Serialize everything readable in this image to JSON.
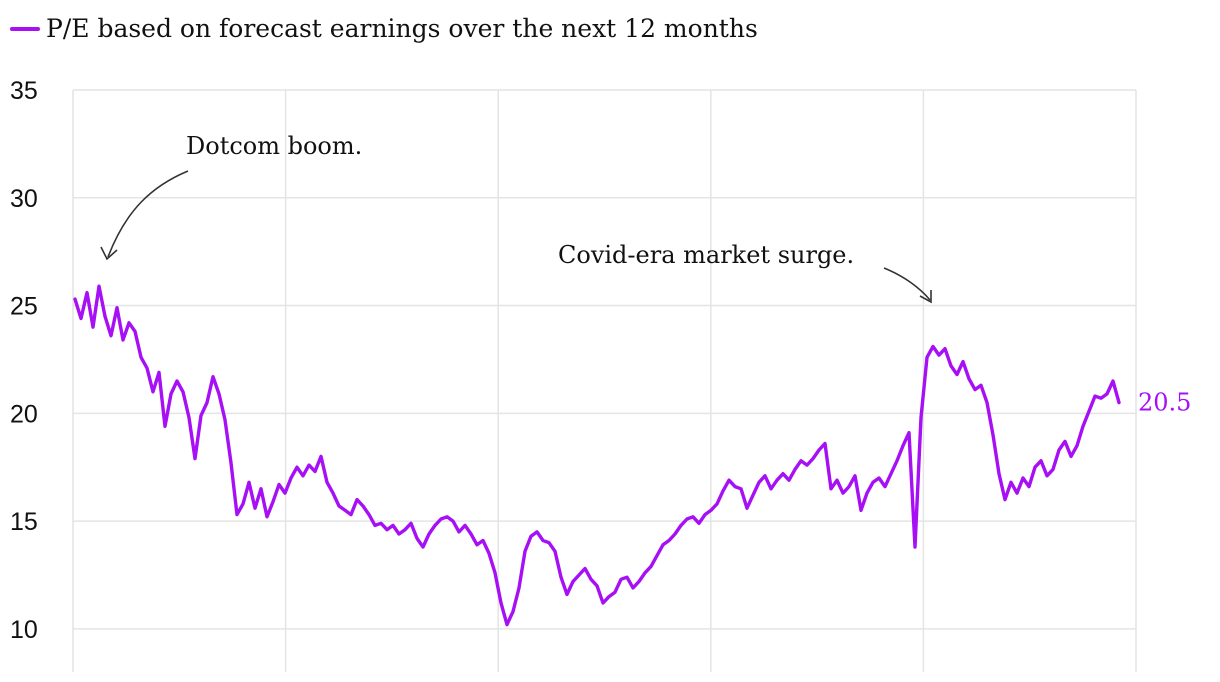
{
  "chart_data": {
    "type": "line",
    "legend": {
      "label": "P/E based on forecast earnings over the next 12 months",
      "placement": "top-left"
    },
    "ylim": [
      8,
      35
    ],
    "y_ticks": [
      10,
      15,
      20,
      25,
      30,
      35
    ],
    "y_tick_labels": [
      "10",
      "15",
      "20",
      "25",
      "30",
      "35"
    ],
    "grid": true,
    "color": "#a70ff5",
    "series": [
      {
        "name": "P/E based on forecast earnings over the next 12 months",
        "values": [
          25.3,
          24.4,
          25.6,
          24.0,
          25.9,
          24.5,
          23.6,
          24.9,
          23.4,
          24.2,
          23.8,
          22.6,
          22.1,
          21.0,
          21.9,
          19.4,
          20.9,
          21.5,
          21.0,
          19.8,
          17.9,
          19.9,
          20.5,
          21.7,
          20.9,
          19.7,
          17.7,
          15.3,
          15.8,
          16.8,
          15.6,
          16.5,
          15.2,
          15.9,
          16.7,
          16.3,
          17.0,
          17.5,
          17.1,
          17.6,
          17.3,
          18.0,
          16.8,
          16.3,
          15.7,
          15.5,
          15.3,
          16.0,
          15.7,
          15.3,
          14.8,
          14.9,
          14.6,
          14.8,
          14.4,
          14.6,
          14.9,
          14.2,
          13.8,
          14.4,
          14.8,
          15.1,
          15.2,
          15.0,
          14.5,
          14.8,
          14.4,
          13.9,
          14.1,
          13.5,
          12.6,
          11.2,
          10.2,
          10.8,
          11.9,
          13.6,
          14.3,
          14.5,
          14.1,
          14.0,
          13.6,
          12.4,
          11.6,
          12.2,
          12.5,
          12.8,
          12.3,
          12.0,
          11.2,
          11.5,
          11.7,
          12.3,
          12.4,
          11.9,
          12.2,
          12.6,
          12.9,
          13.4,
          13.9,
          14.1,
          14.4,
          14.8,
          15.1,
          15.2,
          14.9,
          15.3,
          15.5,
          15.8,
          16.4,
          16.9,
          16.6,
          16.5,
          15.6,
          16.2,
          16.8,
          17.1,
          16.5,
          16.9,
          17.2,
          16.9,
          17.4,
          17.8,
          17.6,
          17.9,
          18.3,
          18.6,
          16.5,
          16.9,
          16.3,
          16.6,
          17.1,
          15.5,
          16.3,
          16.8,
          17.0,
          16.6,
          17.2,
          17.8,
          18.5,
          19.1,
          13.8,
          19.8,
          22.6,
          23.1,
          22.7,
          23.0,
          22.2,
          21.8,
          22.4,
          21.6,
          21.1,
          21.3,
          20.5,
          19.0,
          17.2,
          16.0,
          16.8,
          16.3,
          17.0,
          16.6,
          17.5,
          17.8,
          17.1,
          17.4,
          18.3,
          18.7,
          18.0,
          18.5,
          19.4,
          20.1,
          20.8,
          20.7,
          20.9,
          21.5,
          20.5
        ]
      }
    ],
    "last_value_label": "20.5",
    "annotations": [
      {
        "text": "Dotcom boom."
      },
      {
        "text": "Covid-era market surge."
      }
    ]
  }
}
